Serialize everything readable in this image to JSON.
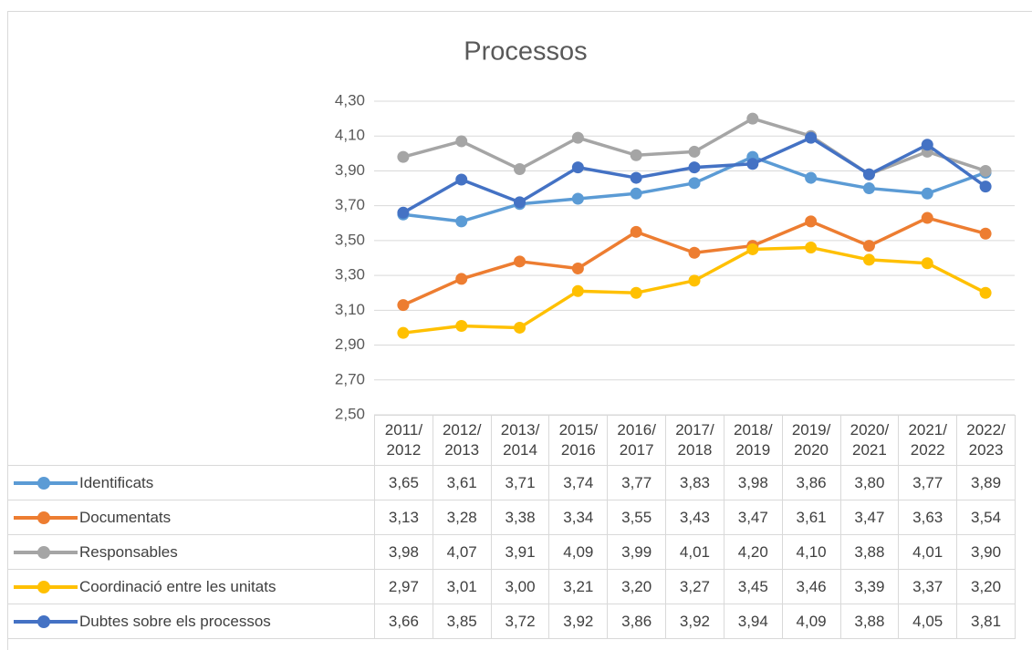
{
  "chart_data": {
    "type": "line",
    "title": "Processos",
    "categories": [
      "2011/2012",
      "2012/2013",
      "2013/2014",
      "2015/2016",
      "2016/2017",
      "2017/2018",
      "2018/2019",
      "2019/2020",
      "2020/2021",
      "2021/2022",
      "2022/2023"
    ],
    "ylim": [
      2.5,
      4.3
    ],
    "yticks": [
      {
        "value": 2.5,
        "label": "2,50"
      },
      {
        "value": 2.7,
        "label": "2,70"
      },
      {
        "value": 2.9,
        "label": "2,90"
      },
      {
        "value": 3.1,
        "label": "3,10"
      },
      {
        "value": 3.3,
        "label": "3,30"
      },
      {
        "value": 3.5,
        "label": "3,50"
      },
      {
        "value": 3.7,
        "label": "3,70"
      },
      {
        "value": 3.9,
        "label": "3,90"
      },
      {
        "value": 4.1,
        "label": "4,10"
      },
      {
        "value": 4.3,
        "label": "4,30"
      }
    ],
    "grid": true,
    "series": [
      {
        "name": "Identificats",
        "color": "#5b9bd5",
        "values": [
          3.65,
          3.61,
          3.71,
          3.74,
          3.77,
          3.83,
          3.98,
          3.86,
          3.8,
          3.77,
          3.89
        ],
        "value_labels": [
          "3,65",
          "3,61",
          "3,71",
          "3,74",
          "3,77",
          "3,83",
          "3,98",
          "3,86",
          "3,80",
          "3,77",
          "3,89"
        ]
      },
      {
        "name": "Documentats",
        "color": "#ed7d31",
        "values": [
          3.13,
          3.28,
          3.38,
          3.34,
          3.55,
          3.43,
          3.47,
          3.61,
          3.47,
          3.63,
          3.54
        ],
        "value_labels": [
          "3,13",
          "3,28",
          "3,38",
          "3,34",
          "3,55",
          "3,43",
          "3,47",
          "3,61",
          "3,47",
          "3,63",
          "3,54"
        ]
      },
      {
        "name": "Responsables",
        "color": "#a5a5a5",
        "values": [
          3.98,
          4.07,
          3.91,
          4.09,
          3.99,
          4.01,
          4.2,
          4.1,
          3.88,
          4.01,
          3.9
        ],
        "value_labels": [
          "3,98",
          "4,07",
          "3,91",
          "4,09",
          "3,99",
          "4,01",
          "4,20",
          "4,10",
          "3,88",
          "4,01",
          "3,90"
        ]
      },
      {
        "name": "Coordinació entre les unitats",
        "color": "#ffc000",
        "values": [
          2.97,
          3.01,
          3.0,
          3.21,
          3.2,
          3.27,
          3.45,
          3.46,
          3.39,
          3.37,
          3.2
        ],
        "value_labels": [
          "2,97",
          "3,01",
          "3,00",
          "3,21",
          "3,20",
          "3,27",
          "3,45",
          "3,46",
          "3,39",
          "3,37",
          "3,20"
        ]
      },
      {
        "name": "Dubtes sobre els processos",
        "color": "#4472c4",
        "values": [
          3.66,
          3.85,
          3.72,
          3.92,
          3.86,
          3.92,
          3.94,
          4.09,
          3.88,
          4.05,
          3.81
        ],
        "value_labels": [
          "3,66",
          "3,85",
          "3,72",
          "3,92",
          "3,86",
          "3,92",
          "3,94",
          "4,09",
          "3,88",
          "4,05",
          "3,81"
        ]
      }
    ]
  }
}
